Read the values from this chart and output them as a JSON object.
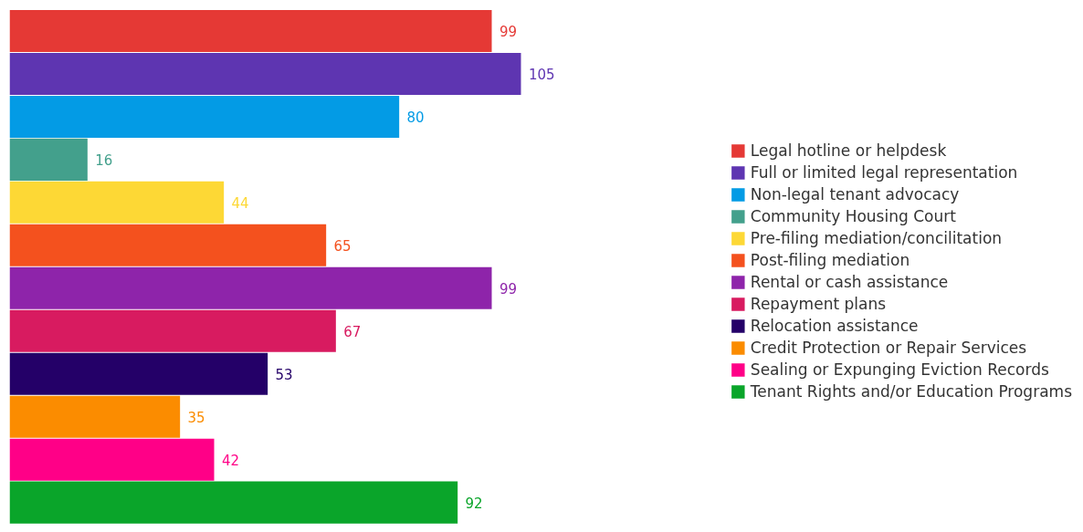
{
  "chart_data": {
    "type": "bar",
    "orientation": "horizontal",
    "data_labels": true,
    "legend": "right",
    "categories": [
      null
    ],
    "series": [
      {
        "name": "Legal hotline or helpdesk",
        "color": "#e53935",
        "values": [
          99
        ]
      },
      {
        "name": "Full or limited legal representation",
        "color": "#5e35b1",
        "values": [
          105
        ]
      },
      {
        "name": "Non-legal tenant advocacy",
        "color": "#039be5",
        "values": [
          80
        ]
      },
      {
        "name": "Community Housing Court",
        "color": "#43a08c",
        "values": [
          16
        ]
      },
      {
        "name": "Pre-filing mediation/concilitation",
        "color": "#fdd835",
        "values": [
          44
        ]
      },
      {
        "name": "Post-filing mediation",
        "color": "#f4511e",
        "values": [
          65
        ]
      },
      {
        "name": "Rental or cash assistance",
        "color": "#8e24aa",
        "values": [
          99
        ]
      },
      {
        "name": "Repayment plans",
        "color": "#d81b60",
        "values": [
          67
        ]
      },
      {
        "name": "Relocation assistance",
        "color": "#240068",
        "values": [
          53
        ]
      },
      {
        "name": "Credit Protection or Repair Services",
        "color": "#fb8c00",
        "values": [
          35
        ]
      },
      {
        "name": "Sealing or Expunging Eviction Records",
        "color": "#ff0087",
        "values": [
          42
        ]
      },
      {
        "name": "Tenant Rights and/or Education Programs",
        "color": "#0aa52a",
        "values": [
          92
        ]
      }
    ]
  }
}
